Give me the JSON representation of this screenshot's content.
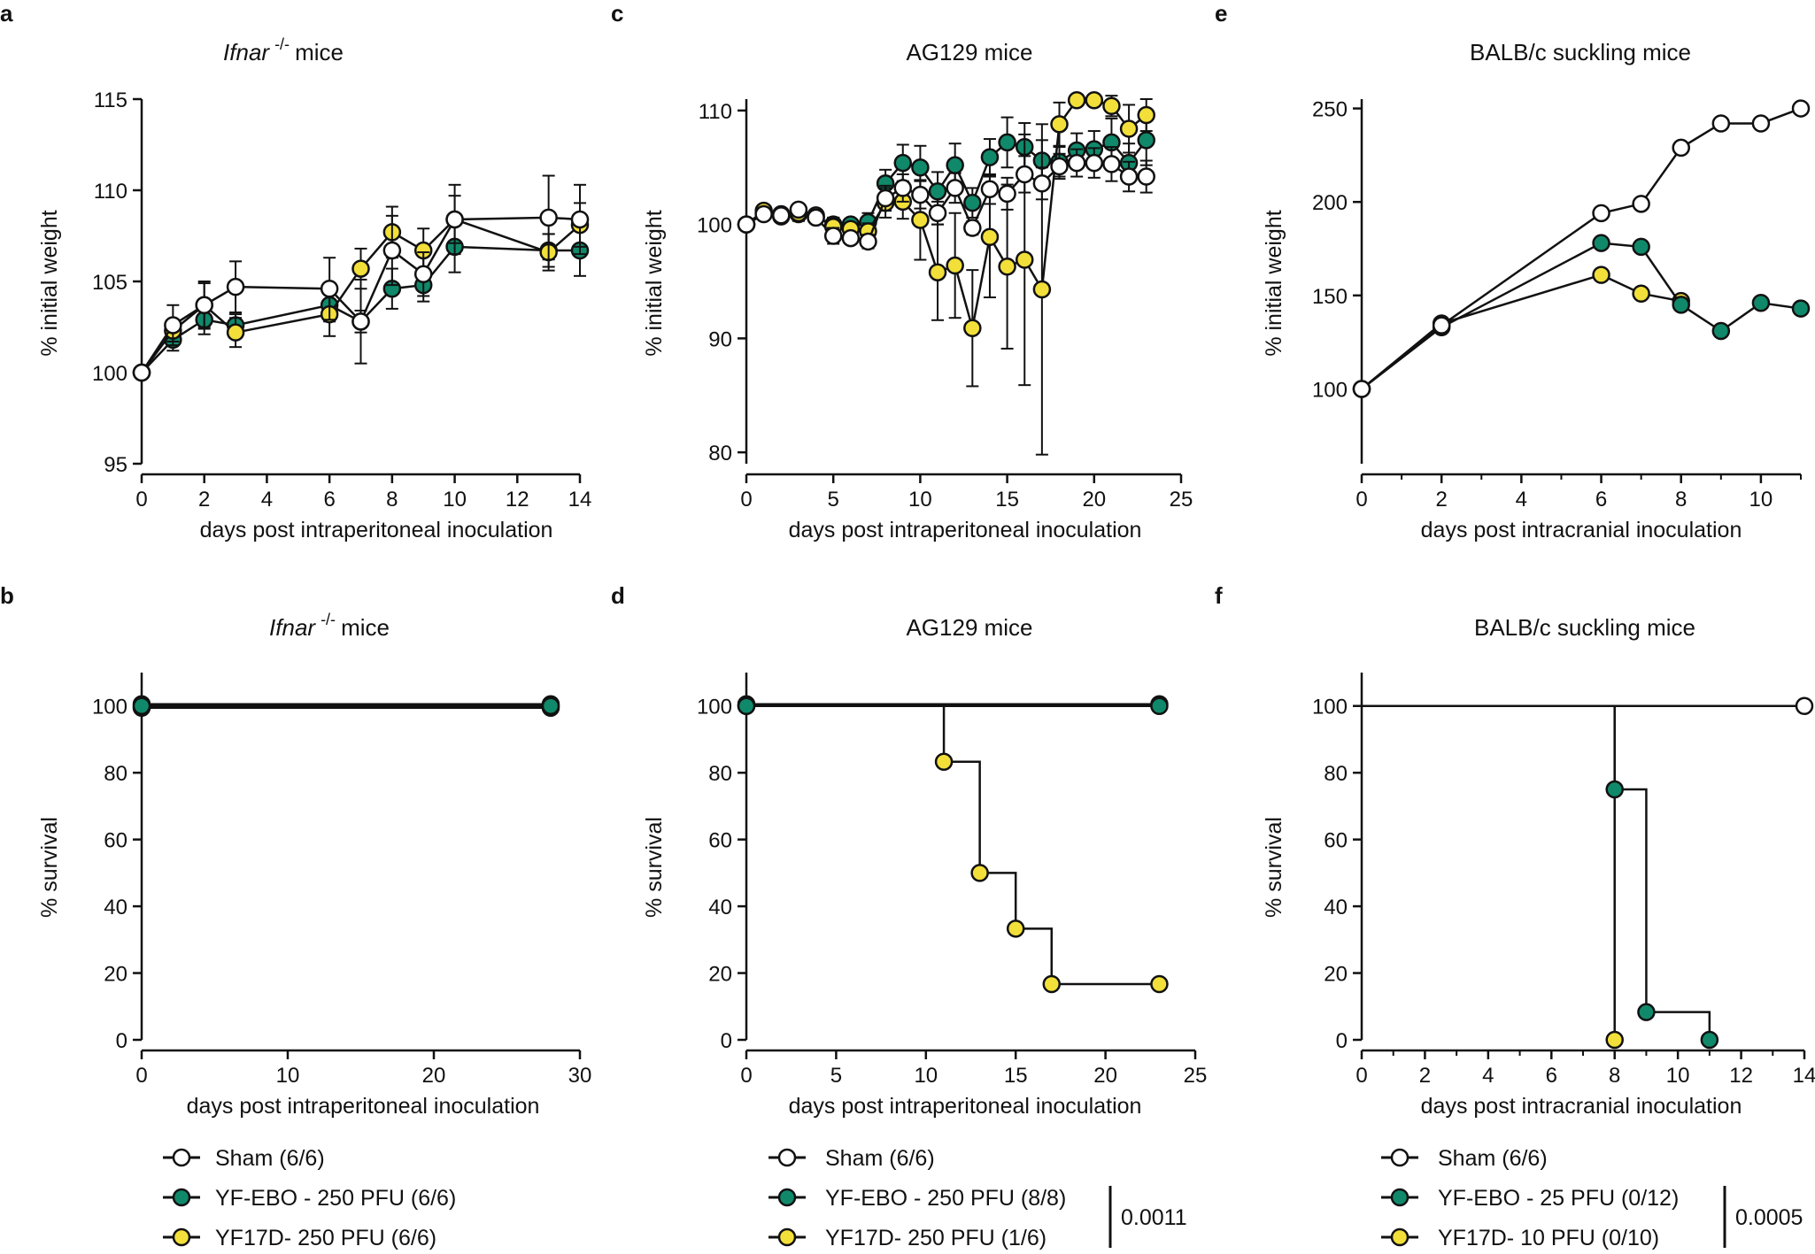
{
  "colors": {
    "sham": "#ffffff",
    "yfebo": "#10896b",
    "yf17d": "#f2df3a",
    "line": "#111111"
  },
  "legends": [
    {
      "items": [
        "Sham (6/6)",
        "YF-EBO - 250 PFU (6/6)",
        "YF17D- 250 PFU (6/6)"
      ],
      "pvalue": ""
    },
    {
      "items": [
        "Sham (6/6)",
        "YF-EBO - 250 PFU (8/8)",
        "YF17D- 250 PFU (1/6)"
      ],
      "pvalue": "0.0011"
    },
    {
      "items": [
        "Sham (6/6)",
        "YF-EBO - 25 PFU (0/12)",
        "YF17D- 10 PFU (0/10)"
      ],
      "pvalue": "0.0005"
    }
  ],
  "chart_data": [
    {
      "letter": "a",
      "type": "line",
      "title": "mice",
      "title_italic": "Ifnar",
      "title_sup": "-/-",
      "xlabel": "days post intraperitoneal inoculation",
      "ylabel": "% initial weight",
      "xlim": [
        0,
        14
      ],
      "ylim": [
        95,
        115
      ],
      "xticks": [
        0,
        2,
        4,
        6,
        8,
        10,
        12,
        14
      ],
      "yticks": [
        95,
        100,
        105,
        110,
        115
      ],
      "series": [
        {
          "name": "YF-EBO - 250 PFU",
          "color": "yfebo",
          "x": [
            0,
            1,
            2,
            3,
            6,
            7,
            8,
            9,
            10,
            13,
            14
          ],
          "y": [
            100,
            101.8,
            102.9,
            102.6,
            103.7,
            102.8,
            104.6,
            104.8,
            106.9,
            106.7,
            106.7
          ],
          "err": [
            0,
            0.6,
            0.8,
            0.6,
            0.9,
            0.6,
            1.1,
            0.9,
            1.4,
            0.9,
            1.4
          ]
        },
        {
          "name": "YF17D- 250 PFU",
          "color": "yf17d",
          "x": [
            0,
            1,
            2,
            3,
            6,
            7,
            8,
            9,
            10,
            13,
            14
          ],
          "y": [
            100,
            102.3,
            103.7,
            102.2,
            103.2,
            105.7,
            107.7,
            106.7,
            108.4,
            106.6,
            108.1
          ],
          "err": [
            0,
            0.6,
            1.2,
            0.8,
            1.2,
            1.1,
            1.4,
            1.2,
            1.3,
            1.0,
            1.2
          ]
        },
        {
          "name": "Sham",
          "color": "sham",
          "x": [
            0,
            1,
            2,
            3,
            6,
            7,
            8,
            9,
            10,
            13,
            14
          ],
          "y": [
            100,
            102.6,
            103.7,
            104.7,
            104.6,
            102.8,
            106.7,
            105.4,
            108.4,
            108.5,
            108.4
          ],
          "err": [
            0,
            1.1,
            1.3,
            1.4,
            1.7,
            2.3,
            1.9,
            1.2,
            1.9,
            2.3,
            1.9
          ]
        }
      ]
    },
    {
      "letter": "c",
      "type": "line",
      "title": "AG129 mice",
      "xlabel": "days post intraperitoneal inoculation",
      "ylabel": "% initial weight",
      "xlim": [
        0,
        25
      ],
      "ylim": [
        79,
        111
      ],
      "xticks": [
        0,
        5,
        10,
        15,
        20,
        25
      ],
      "yticks": [
        80,
        90,
        100,
        110
      ],
      "series": [
        {
          "name": "YF-EBO - 250 PFU",
          "color": "yfebo",
          "x": [
            0,
            1,
            2,
            3,
            4,
            5,
            6,
            7,
            8,
            9,
            10,
            11,
            12,
            13,
            14,
            15,
            16,
            17,
            18,
            19,
            20,
            21,
            22,
            23
          ],
          "y": [
            100,
            101,
            100.7,
            100.9,
            100.6,
            100,
            100,
            100.2,
            103.6,
            105.4,
            105.0,
            102.9,
            105.2,
            101.9,
            105.9,
            107.2,
            106.8,
            105.6,
            105.5,
            106.5,
            106.6,
            107.2,
            105.4,
            107.4
          ],
          "err": [
            0,
            0.4,
            0.4,
            0.6,
            0.5,
            0.6,
            0.4,
            0.8,
            1.2,
            1.6,
            1.9,
            1.7,
            1.9,
            1.3,
            1.6,
            2.2,
            2.1,
            1.8,
            1.3,
            1.5,
            1.6,
            2.1,
            1.7,
            2.2
          ]
        },
        {
          "name": "YF17D- 250 PFU",
          "color": "yf17d",
          "x": [
            0,
            1,
            2,
            3,
            4,
            5,
            6,
            7,
            8,
            9,
            10,
            11,
            12,
            13,
            14,
            15,
            16,
            17,
            18,
            19,
            20,
            21,
            22,
            23
          ],
          "y": [
            100,
            101.2,
            100.9,
            101.0,
            100.8,
            99.8,
            99.6,
            99.4,
            101.9,
            102.0,
            100.4,
            95.8,
            96.4,
            90.9,
            98.9,
            96.3,
            96.9,
            94.3,
            108.8,
            110.9,
            110.9,
            110.4,
            108.4,
            109.6
          ],
          "err": [
            0,
            0.5,
            0.4,
            0.6,
            0.5,
            0.8,
            0.5,
            0.7,
            1.3,
            1.5,
            3.5,
            4.2,
            4.6,
            5.1,
            5.3,
            7.2,
            11.0,
            14.5,
            1.9,
            0,
            0,
            0.9,
            2.1,
            1.4
          ]
        },
        {
          "name": "Sham",
          "color": "sham",
          "x": [
            0,
            1,
            2,
            3,
            4,
            5,
            6,
            7,
            8,
            9,
            10,
            11,
            12,
            13,
            14,
            15,
            16,
            17,
            18,
            19,
            20,
            21,
            22,
            23
          ],
          "y": [
            100,
            100.9,
            100.8,
            101.3,
            100.6,
            99.0,
            98.8,
            98.5,
            102.3,
            103.2,
            102.6,
            101.0,
            103.2,
            99.7,
            103.1,
            102.7,
            104.4,
            103.6,
            105.1,
            105.4,
            105.4,
            105.3,
            104.2,
            104.2
          ],
          "err": [
            0,
            0.4,
            0.4,
            0.5,
            0.5,
            0.7,
            0.5,
            0.6,
            1.1,
            1.2,
            1.2,
            1.0,
            1.3,
            0.6,
            1.3,
            1.4,
            1.6,
            1.4,
            1.1,
            1.2,
            1.3,
            1.5,
            1.3,
            1.4
          ]
        }
      ]
    },
    {
      "letter": "e",
      "type": "line",
      "title": "BALB/c suckling mice",
      "xlabel": "days post intracranial inoculation",
      "ylabel": "% initial weight",
      "xlim": [
        0,
        11
      ],
      "ylim": [
        60,
        255
      ],
      "xticks": [
        0,
        2,
        4,
        6,
        8,
        10
      ],
      "minor_xticks": [
        1,
        3,
        5,
        7,
        9,
        11
      ],
      "yticks": [
        100,
        150,
        200,
        250
      ],
      "series": [
        {
          "name": "YF17D- 10 PFU",
          "color": "yf17d",
          "x": [
            0,
            2,
            6,
            7,
            8
          ],
          "y": [
            100,
            135,
            161,
            151,
            147
          ]
        },
        {
          "name": "YF-EBO - 25 PFU",
          "color": "yfebo",
          "x": [
            0,
            2,
            6,
            7,
            8,
            9,
            10,
            11
          ],
          "y": [
            100,
            133,
            178,
            176,
            145,
            131,
            146,
            143
          ]
        },
        {
          "name": "Sham",
          "color": "sham",
          "x": [
            0,
            2,
            6,
            7,
            8,
            9,
            10,
            11
          ],
          "y": [
            100,
            134,
            194,
            199,
            229,
            242,
            242,
            250
          ]
        }
      ]
    },
    {
      "letter": "b",
      "type": "survival",
      "title": "mice",
      "title_italic": "Ifnar",
      "title_sup": "-/-",
      "xlabel": "days post intraperitoneal inoculation",
      "ylabel": "% survival",
      "xlim": [
        0,
        30
      ],
      "ylim": [
        0,
        110
      ],
      "xticks": [
        0,
        10,
        20,
        30
      ],
      "yticks": [
        0,
        20,
        40,
        60,
        80,
        100
      ],
      "series": [
        {
          "name": "Sham",
          "color": "sham",
          "offset": 2,
          "steps": [
            [
              0,
              100
            ],
            [
              28,
              100
            ]
          ],
          "markers": [
            [
              0,
              100
            ],
            [
              28,
              100
            ]
          ]
        },
        {
          "name": "YF17D- 250 PFU",
          "color": "yf17d",
          "offset": -2,
          "steps": [
            [
              0,
              100
            ],
            [
              28,
              100
            ]
          ],
          "markers": [
            [
              0,
              100
            ],
            [
              28,
              100
            ]
          ]
        },
        {
          "name": "YF-EBO - 250 PFU",
          "color": "yfebo",
          "offset": 0,
          "steps": [
            [
              0,
              100
            ],
            [
              28,
              100
            ]
          ],
          "markers": [
            [
              0,
              100
            ],
            [
              28,
              100
            ]
          ]
        }
      ]
    },
    {
      "letter": "d",
      "type": "survival",
      "title": "AG129 mice",
      "xlabel": "days post intraperitoneal inoculation",
      "ylabel": "% survival",
      "xlim": [
        0,
        25
      ],
      "ylim": [
        0,
        110
      ],
      "xticks": [
        0,
        5,
        10,
        15,
        20,
        25
      ],
      "yticks": [
        0,
        20,
        40,
        60,
        80,
        100
      ],
      "series": [
        {
          "name": "Sham",
          "color": "sham",
          "offset": 2,
          "steps": [
            [
              0,
              100
            ],
            [
              23,
              100
            ]
          ],
          "markers": [
            [
              0,
              100
            ],
            [
              23,
              100
            ]
          ]
        },
        {
          "name": "YF17D- 250 PFU",
          "color": "yf17d",
          "offset": 0,
          "steps": [
            [
              0,
              100
            ],
            [
              11,
              83.3
            ],
            [
              13,
              50
            ],
            [
              15,
              33.3
            ],
            [
              17,
              16.7
            ],
            [
              23,
              16.7
            ]
          ],
          "markers": [
            [
              0,
              100
            ],
            [
              11,
              83.3
            ],
            [
              13,
              50
            ],
            [
              15,
              33.3
            ],
            [
              17,
              16.7
            ],
            [
              23,
              16.7
            ]
          ]
        },
        {
          "name": "YF-EBO - 250 PFU",
          "color": "yfebo",
          "offset": 0,
          "steps": [
            [
              0,
              100
            ],
            [
              23,
              100
            ]
          ],
          "markers": [
            [
              0,
              100
            ],
            [
              23,
              100
            ]
          ]
        }
      ]
    },
    {
      "letter": "f",
      "type": "survival",
      "title": "BALB/c suckling mice",
      "xlabel": "days post intracranial inoculation",
      "ylabel": "% survival",
      "xlim": [
        0,
        14
      ],
      "ylim": [
        0,
        110
      ],
      "xticks": [
        0,
        2,
        4,
        6,
        8,
        10,
        12,
        14
      ],
      "minor_xticks": [
        1,
        3,
        5,
        7,
        9,
        11,
        13
      ],
      "yticks": [
        0,
        20,
        40,
        60,
        80,
        100
      ],
      "series": [
        {
          "name": "Sham",
          "color": "sham",
          "offset": 0,
          "steps": [
            [
              0,
              100
            ],
            [
              14,
              100
            ]
          ],
          "markers": [
            [
              14,
              100
            ]
          ]
        },
        {
          "name": "YF17D- 10 PFU",
          "color": "yf17d",
          "offset": 0,
          "steps": [
            [
              0,
              100
            ],
            [
              8,
              0
            ]
          ],
          "markers": [
            [
              8,
              0
            ]
          ]
        },
        {
          "name": "YF-EBO - 25 PFU",
          "color": "yfebo",
          "offset": 0,
          "steps": [
            [
              0,
              100
            ],
            [
              8,
              75
            ],
            [
              9,
              8.3
            ],
            [
              11,
              0
            ]
          ],
          "markers": [
            [
              8,
              75
            ],
            [
              9,
              8.3
            ],
            [
              11,
              0
            ]
          ]
        }
      ]
    }
  ]
}
